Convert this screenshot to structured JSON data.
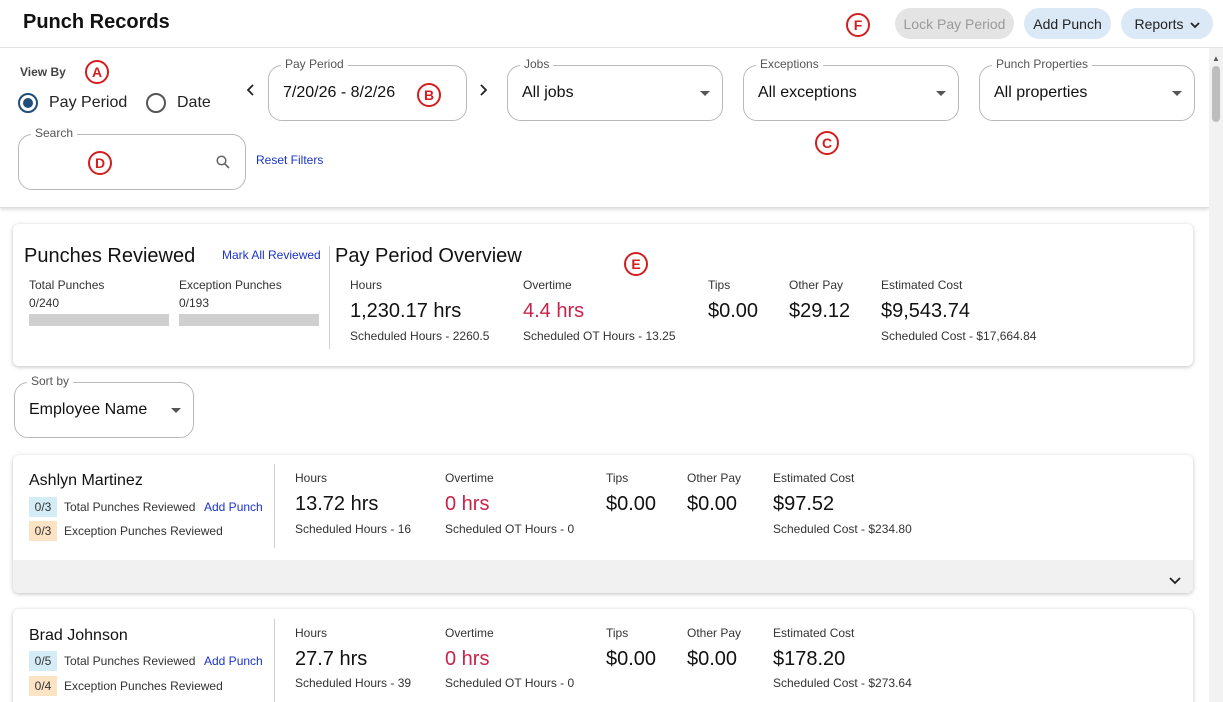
{
  "header": {
    "title": "Punch Records",
    "lock_label": "Lock Pay Period",
    "add_punch_label": "Add Punch",
    "reports_label": "Reports"
  },
  "markers": {
    "a": "A",
    "b": "B",
    "c": "C",
    "d": "D",
    "e": "E",
    "f": "F"
  },
  "filters": {
    "view_by_label": "View By",
    "radio_pay_period": "Pay Period",
    "radio_date": "Date",
    "selected_view": "Pay Period",
    "pay_period_legend": "Pay Period",
    "pay_period_value": "7/20/26 - 8/2/26",
    "jobs_legend": "Jobs",
    "jobs_value": "All jobs",
    "exceptions_legend": "Exceptions",
    "exceptions_value": "All exceptions",
    "properties_legend": "Punch Properties",
    "properties_value": "All properties",
    "search_legend": "Search",
    "search_value": "",
    "reset_label": "Reset Filters"
  },
  "review": {
    "title": "Punches Reviewed",
    "mark_all_label": "Mark All Reviewed",
    "total_label": "Total Punches",
    "total_value": "0/240",
    "total_progress": 0,
    "exception_label": "Exception Punches",
    "exception_value": "0/193",
    "exception_progress": 0
  },
  "overview": {
    "title": "Pay Period Overview",
    "hours_label": "Hours",
    "hours_value": "1,230.17 hrs",
    "hours_sub": "Scheduled Hours - 2260.5",
    "ot_label": "Overtime",
    "ot_value": "4.4 hrs",
    "ot_sub": "Scheduled OT Hours - 13.25",
    "tips_label": "Tips",
    "tips_value": "$0.00",
    "other_label": "Other Pay",
    "other_value": "$29.12",
    "cost_label": "Estimated Cost",
    "cost_value": "$9,543.74",
    "cost_sub": "Scheduled Cost - $17,664.84"
  },
  "sort": {
    "legend": "Sort by",
    "value": "Employee Name"
  },
  "employees": [
    {
      "name": "Ashlyn Martinez",
      "total_badge": "0/3",
      "total_label": "Total Punches Reviewed",
      "add_punch": "Add Punch",
      "exception_badge": "0/3",
      "exception_label": "Exception Punches Reviewed",
      "hours_label": "Hours",
      "hours_value": "13.72 hrs",
      "hours_sub": "Scheduled Hours - 16",
      "ot_label": "Overtime",
      "ot_value": "0 hrs",
      "ot_sub": "Scheduled OT Hours - 0",
      "tips_label": "Tips",
      "tips_value": "$0.00",
      "other_label": "Other Pay",
      "other_value": "$0.00",
      "cost_label": "Estimated Cost",
      "cost_value": "$97.52",
      "cost_sub": "Scheduled Cost - $234.80"
    },
    {
      "name": "Brad Johnson",
      "total_badge": "0/5",
      "total_label": "Total Punches Reviewed",
      "add_punch": "Add Punch",
      "exception_badge": "0/4",
      "exception_label": "Exception Punches Reviewed",
      "hours_label": "Hours",
      "hours_value": "27.7 hrs",
      "hours_sub": "Scheduled Hours - 39",
      "ot_label": "Overtime",
      "ot_value": "0 hrs",
      "ot_sub": "Scheduled OT Hours - 0",
      "tips_label": "Tips",
      "tips_value": "$0.00",
      "other_label": "Other Pay",
      "other_value": "$0.00",
      "cost_label": "Estimated Cost",
      "cost_value": "$178.20",
      "cost_sub": "Scheduled Cost - $273.64"
    }
  ],
  "colors": {
    "accent": "#1f4e79",
    "overtime": "#c8234a",
    "link": "#1a33cc",
    "marker": "#d21e1e"
  }
}
